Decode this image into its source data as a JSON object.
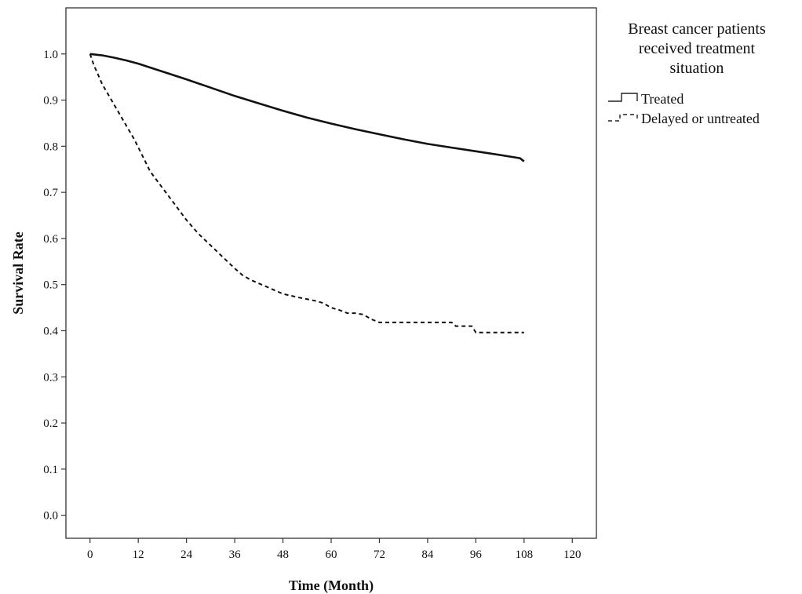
{
  "chart_data": {
    "type": "line",
    "title": "",
    "xlabel": "Time (Month)",
    "ylabel": "Survival Rate",
    "xlim": [
      -6,
      126
    ],
    "ylim": [
      -0.05,
      1.1
    ],
    "x_ticks": [
      0,
      12,
      24,
      36,
      48,
      60,
      72,
      84,
      96,
      108,
      120
    ],
    "y_ticks": [
      0.0,
      0.1,
      0.2,
      0.3,
      0.4,
      0.5,
      0.6,
      0.7,
      0.8,
      0.9,
      1.0
    ],
    "x_tick_labels": [
      "0",
      "12",
      "24",
      "36",
      "48",
      "60",
      "72",
      "84",
      "96",
      "108",
      "120"
    ],
    "y_tick_labels": [
      "0.0",
      "0.1",
      "0.2",
      "0.3",
      "0.4",
      "0.5",
      "0.6",
      "0.7",
      "0.8",
      "0.9",
      "1.0"
    ],
    "legend_title": [
      "Breast cancer patients",
      "received treatment",
      "situation"
    ],
    "legend_position": "right",
    "grid": false,
    "series": [
      {
        "name": "Treated",
        "style": "solid",
        "color": "#111111",
        "x": [
          0,
          3,
          6,
          9,
          12,
          18,
          24,
          30,
          36,
          42,
          48,
          54,
          60,
          66,
          72,
          78,
          84,
          90,
          96,
          102,
          107,
          108
        ],
        "y": [
          1.0,
          0.997,
          0.992,
          0.986,
          0.979,
          0.962,
          0.945,
          0.927,
          0.909,
          0.893,
          0.877,
          0.862,
          0.849,
          0.837,
          0.826,
          0.815,
          0.805,
          0.797,
          0.789,
          0.781,
          0.774,
          0.767
        ]
      },
      {
        "name": "Delayed or untreated",
        "style": "dashed",
        "color": "#111111",
        "x": [
          0,
          1,
          2,
          3,
          5,
          7,
          9,
          11,
          13,
          15,
          18,
          21,
          24,
          27,
          30,
          33,
          36,
          38,
          40,
          44,
          48,
          52,
          56,
          58,
          60,
          62,
          64,
          66,
          68,
          70,
          72,
          76,
          80,
          84,
          88,
          90,
          91,
          95,
          96,
          108
        ],
        "y": [
          1.0,
          0.975,
          0.955,
          0.935,
          0.905,
          0.875,
          0.845,
          0.815,
          0.78,
          0.745,
          0.71,
          0.675,
          0.64,
          0.61,
          0.585,
          0.56,
          0.535,
          0.52,
          0.51,
          0.495,
          0.48,
          0.472,
          0.465,
          0.46,
          0.45,
          0.445,
          0.438,
          0.438,
          0.435,
          0.425,
          0.418,
          0.418,
          0.418,
          0.418,
          0.418,
          0.418,
          0.41,
          0.41,
          0.396,
          0.396
        ]
      }
    ]
  }
}
